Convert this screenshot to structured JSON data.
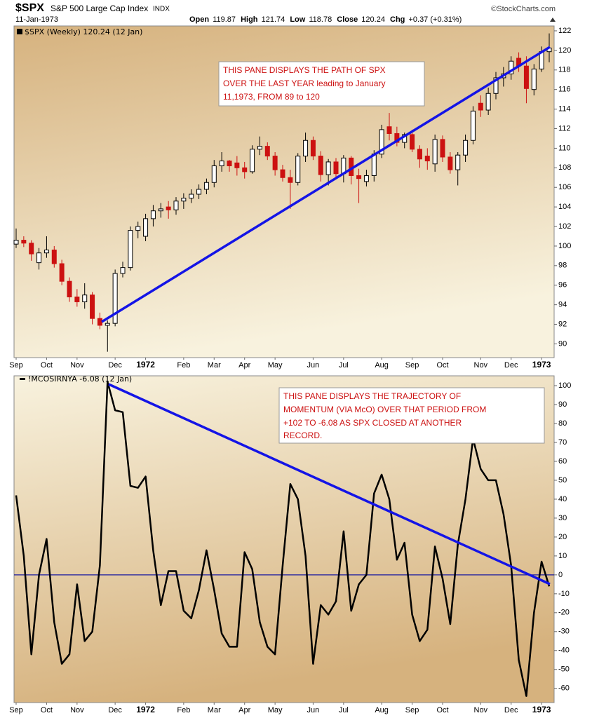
{
  "header": {
    "symbol": "$SPX",
    "name": "S&P 500 Large Cap Index",
    "exchange": "INDX",
    "source": "©StockCharts.com",
    "date": "11-Jan-1973",
    "open_label": "Open",
    "open": "119.87",
    "high_label": "High",
    "high": "121.74",
    "low_label": "Low",
    "low": "118.78",
    "close_label": "Close",
    "close": "120.24",
    "chg_label": "Chg",
    "chg": "+0.37 (+0.31%)"
  },
  "chart_data": [
    {
      "type": "candlestick",
      "legend": "$SPX (Weekly) 120.24 (12 Jan)",
      "annotation": [
        "THIS PANE DISPLAYS THE PATH OF SPX",
        "OVER THE LAST YEAR leading to January",
        "11,1973, FROM 89 to 120"
      ],
      "categories": [
        "Sep",
        null,
        null,
        null,
        "Oct",
        null,
        null,
        null,
        "Nov",
        null,
        null,
        null,
        null,
        "Dec",
        null,
        null,
        null,
        "1972",
        null,
        null,
        null,
        null,
        "Feb",
        null,
        null,
        null,
        "Mar",
        null,
        null,
        null,
        "Apr",
        null,
        null,
        null,
        "May",
        null,
        null,
        null,
        null,
        "Jun",
        null,
        null,
        null,
        "Jul",
        null,
        null,
        null,
        null,
        "Aug",
        null,
        null,
        null,
        "Sep",
        null,
        null,
        null,
        "Oct",
        null,
        null,
        null,
        null,
        "Nov",
        null,
        null,
        null,
        "Dec",
        null,
        null,
        null,
        "1973",
        null
      ],
      "candles": [
        [
          100.2,
          101.8,
          99.8,
          100.6
        ],
        [
          100.6,
          101.0,
          99.9,
          100.3
        ],
        [
          100.3,
          100.6,
          98.5,
          99.2
        ],
        [
          98.3,
          99.8,
          97.6,
          99.3
        ],
        [
          99.3,
          101.0,
          98.8,
          99.6
        ],
        [
          99.6,
          100.0,
          97.8,
          98.2
        ],
        [
          98.2,
          98.6,
          96.0,
          96.4
        ],
        [
          96.4,
          96.8,
          94.3,
          94.8
        ],
        [
          94.8,
          95.6,
          93.8,
          94.3
        ],
        [
          94.3,
          96.2,
          93.6,
          95.0
        ],
        [
          95.0,
          95.3,
          92.0,
          92.6
        ],
        [
          92.6,
          93.2,
          91.5,
          91.9
        ],
        [
          91.9,
          92.4,
          89.2,
          92.1
        ],
        [
          92.1,
          97.6,
          91.8,
          97.2
        ],
        [
          97.2,
          98.4,
          96.8,
          97.8
        ],
        [
          97.8,
          102.0,
          97.5,
          101.6
        ],
        [
          101.6,
          102.5,
          100.8,
          102.0
        ],
        [
          101.0,
          103.3,
          100.5,
          102.8
        ],
        [
          102.8,
          104.2,
          102.0,
          103.6
        ],
        [
          103.6,
          104.4,
          102.9,
          103.8
        ],
        [
          104.0,
          104.6,
          102.8,
          103.7
        ],
        [
          103.7,
          105.0,
          103.2,
          104.6
        ],
        [
          104.6,
          105.4,
          103.8,
          104.9
        ],
        [
          104.9,
          105.8,
          104.4,
          105.3
        ],
        [
          105.3,
          106.3,
          104.8,
          105.8
        ],
        [
          105.8,
          106.9,
          105.3,
          106.5
        ],
        [
          106.5,
          108.8,
          106.0,
          108.2
        ],
        [
          108.2,
          109.6,
          107.6,
          108.7
        ],
        [
          108.7,
          108.8,
          107.6,
          108.2
        ],
        [
          108.5,
          109.2,
          107.2,
          108.0
        ],
        [
          108.0,
          108.6,
          106.9,
          107.6
        ],
        [
          107.6,
          110.3,
          107.4,
          109.9
        ],
        [
          109.9,
          111.2,
          109.3,
          110.2
        ],
        [
          110.2,
          110.6,
          108.8,
          109.2
        ],
        [
          109.2,
          109.6,
          107.2,
          107.8
        ],
        [
          107.8,
          108.3,
          106.6,
          107.0
        ],
        [
          107.0,
          107.8,
          103.8,
          106.5
        ],
        [
          106.5,
          109.5,
          106.2,
          109.2
        ],
        [
          109.2,
          111.6,
          108.6,
          110.8
        ],
        [
          110.8,
          111.2,
          108.8,
          109.2
        ],
        [
          109.2,
          109.7,
          106.6,
          107.3
        ],
        [
          107.3,
          108.9,
          106.2,
          108.6
        ],
        [
          108.6,
          109.0,
          106.8,
          107.4
        ],
        [
          107.4,
          109.3,
          106.5,
          109.0
        ],
        [
          109.0,
          109.2,
          106.3,
          107.2
        ],
        [
          107.2,
          107.9,
          104.4,
          106.9
        ],
        [
          106.6,
          107.8,
          106.1,
          107.2
        ],
        [
          107.2,
          109.8,
          106.6,
          109.4
        ],
        [
          109.4,
          112.4,
          109.0,
          111.9
        ],
        [
          112.2,
          113.6,
          110.8,
          111.5
        ],
        [
          111.5,
          112.2,
          110.2,
          110.6
        ],
        [
          110.6,
          111.6,
          110.0,
          111.4
        ],
        [
          111.4,
          111.9,
          109.6,
          109.9
        ],
        [
          109.9,
          110.3,
          108.0,
          108.9
        ],
        [
          109.2,
          110.0,
          107.8,
          108.7
        ],
        [
          108.4,
          111.4,
          107.6,
          110.9
        ],
        [
          110.9,
          111.3,
          108.6,
          109.1
        ],
        [
          109.1,
          109.6,
          107.4,
          107.8
        ],
        [
          107.8,
          109.6,
          106.2,
          109.3
        ],
        [
          109.3,
          111.4,
          108.6,
          110.8
        ],
        [
          110.8,
          114.3,
          110.4,
          113.8
        ],
        [
          114.6,
          115.4,
          113.2,
          113.9
        ],
        [
          113.9,
          116.2,
          113.4,
          115.6
        ],
        [
          115.6,
          117.8,
          115.0,
          117.2
        ],
        [
          117.2,
          118.3,
          116.3,
          117.6
        ],
        [
          117.6,
          119.4,
          117.0,
          118.9
        ],
        [
          119.2,
          119.8,
          117.8,
          118.4
        ],
        [
          118.4,
          119.4,
          114.6,
          116.1
        ],
        [
          116.0,
          118.6,
          115.4,
          118.1
        ],
        [
          118.1,
          120.4,
          117.8,
          119.87
        ],
        [
          119.87,
          121.74,
          118.78,
          120.24
        ]
      ],
      "up_color": "#000000",
      "down_color": "#cc1111",
      "ylim": [
        88.6,
        122.5
      ],
      "yticks": [
        90,
        92,
        94,
        96,
        98,
        100,
        102,
        104,
        106,
        108,
        110,
        112,
        114,
        116,
        118,
        120,
        122
      ]
    },
    {
      "type": "line",
      "legend": "!MCOSIRNYA -6.08 (12 Jan)",
      "annotation": [
        "THIS PANE DISPLAYS THE TRAJECTORY OF",
        "MOMENTUM (VIA McO) OVER THAT PERIOD FROM",
        "+102 TO -6.08 AS SPX CLOSED AT ANOTHER",
        "RECORD."
      ],
      "categories": [
        "Sep",
        null,
        null,
        null,
        "Oct",
        null,
        null,
        null,
        "Nov",
        null,
        null,
        null,
        null,
        "Dec",
        null,
        null,
        null,
        "1972",
        null,
        null,
        null,
        null,
        "Feb",
        null,
        null,
        null,
        "Mar",
        null,
        null,
        null,
        "Apr",
        null,
        null,
        null,
        "May",
        null,
        null,
        null,
        null,
        "Jun",
        null,
        null,
        null,
        "Jul",
        null,
        null,
        null,
        null,
        "Aug",
        null,
        null,
        null,
        "Sep",
        null,
        null,
        null,
        "Oct",
        null,
        null,
        null,
        null,
        "Nov",
        null,
        null,
        null,
        "Dec",
        null,
        null,
        null,
        "1973",
        null
      ],
      "values": [
        42,
        10,
        -42,
        0,
        19,
        -25,
        -47,
        -42,
        -5,
        -35,
        -30,
        5,
        102,
        87,
        86,
        47,
        46,
        52,
        13,
        -16,
        2,
        2,
        -19,
        -23,
        -8,
        13,
        -8,
        -31,
        -38,
        -38,
        12,
        3,
        -25,
        -38,
        -42,
        5,
        48,
        40,
        10,
        -47,
        -16,
        -21,
        -14,
        23,
        -19,
        -5,
        0,
        43,
        53,
        40,
        8,
        17,
        -21,
        -35,
        -29,
        15,
        -2,
        -26,
        16,
        40,
        72,
        56,
        50,
        50,
        32,
        5,
        -45,
        -64,
        -20,
        7,
        -6.08
      ],
      "color": "#000000",
      "ref_line": {
        "value": 0,
        "color": "#1a1aa0"
      },
      "ylim": [
        -67.5,
        105.2
      ],
      "yticks": [
        -60,
        -50,
        -40,
        -30,
        -20,
        -10,
        0,
        10,
        20,
        30,
        40,
        50,
        60,
        70,
        80,
        90,
        100
      ]
    }
  ]
}
